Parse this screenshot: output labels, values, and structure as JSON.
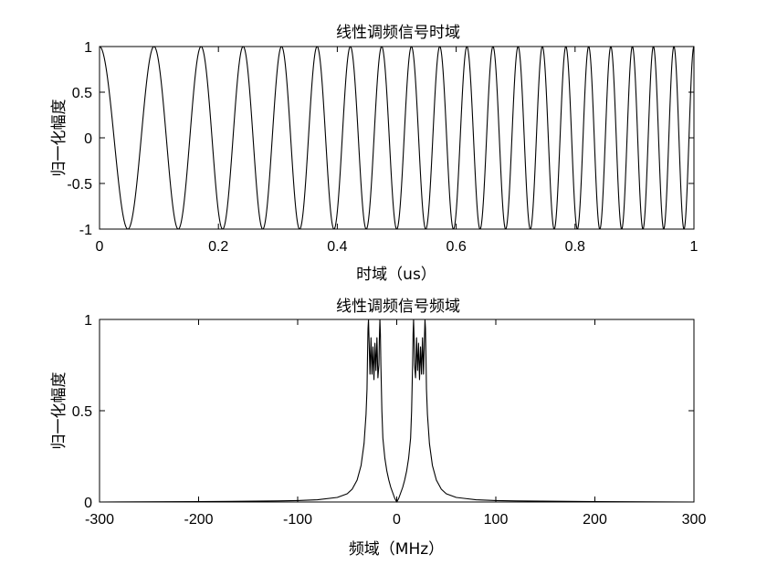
{
  "chart_data": [
    {
      "type": "line",
      "title": "线性调频信号时域",
      "xlabel": "时域（us）",
      "ylabel": "归一化幅度",
      "xlim": [
        0,
        1
      ],
      "ylim": [
        -1,
        1
      ],
      "x_ticks": [
        "0",
        "0.2",
        "0.4",
        "0.6",
        "0.8",
        "1"
      ],
      "y_ticks": [
        "1",
        "0.5",
        "0",
        "-0.5",
        "-1"
      ],
      "grid": false,
      "series": [
        {
          "signal": "cos(2*pi*(f0*t + 0.5*k*t^2))",
          "f0_MHz": 10,
          "chirp_rate_MHz_per_us": 20,
          "t_range_us": [
            0,
            1
          ],
          "color": "#000000"
        }
      ]
    },
    {
      "type": "line",
      "title": "线性调频信号频域",
      "xlabel": "频域（MHz）",
      "ylabel": "归一化幅度",
      "xlim": [
        -300,
        300
      ],
      "ylim": [
        0,
        1
      ],
      "x_ticks": [
        "-300",
        "-200",
        "-100",
        "0",
        "100",
        "200",
        "300"
      ],
      "y_ticks": [
        "1",
        "0.5",
        "0"
      ],
      "grid": false,
      "series": [
        {
          "points": [
            [
              -300,
              0.0
            ],
            [
              -200,
              0.002
            ],
            [
              -120,
              0.006
            ],
            [
              -100,
              0.008
            ],
            [
              -80,
              0.012
            ],
            [
              -60,
              0.025
            ],
            [
              -50,
              0.045
            ],
            [
              -45,
              0.07
            ],
            [
              -40,
              0.12
            ],
            [
              -36,
              0.2
            ],
            [
              -33,
              0.32
            ],
            [
              -31,
              0.48
            ],
            [
              -30,
              0.62
            ],
            [
              -29.5,
              0.8
            ],
            [
              -29,
              0.95
            ],
            [
              -28.5,
              1.0
            ],
            [
              -28,
              0.9
            ],
            [
              -27,
              0.7
            ],
            [
              -26,
              0.9
            ],
            [
              -25,
              0.7
            ],
            [
              -24,
              0.85
            ],
            [
              -23,
              0.67
            ],
            [
              -22,
              0.87
            ],
            [
              -21,
              0.72
            ],
            [
              -20,
              0.9
            ],
            [
              -19,
              0.68
            ],
            [
              -18,
              0.75
            ],
            [
              -17.5,
              0.9
            ],
            [
              -17,
              1.0
            ],
            [
              -16.5,
              0.92
            ],
            [
              -16,
              0.75
            ],
            [
              -15,
              0.5
            ],
            [
              -14,
              0.35
            ],
            [
              -12,
              0.24
            ],
            [
              -10,
              0.17
            ],
            [
              -8,
              0.12
            ],
            [
              -6,
              0.08
            ],
            [
              -4,
              0.05
            ],
            [
              -2,
              0.02
            ],
            [
              0,
              0.0
            ],
            [
              2,
              0.02
            ],
            [
              4,
              0.05
            ],
            [
              6,
              0.08
            ],
            [
              8,
              0.12
            ],
            [
              10,
              0.17
            ],
            [
              12,
              0.24
            ],
            [
              14,
              0.35
            ],
            [
              15,
              0.5
            ],
            [
              16,
              0.75
            ],
            [
              16.5,
              0.92
            ],
            [
              17,
              1.0
            ],
            [
              17.5,
              0.9
            ],
            [
              18,
              0.75
            ],
            [
              19,
              0.68
            ],
            [
              20,
              0.9
            ],
            [
              21,
              0.72
            ],
            [
              22,
              0.87
            ],
            [
              23,
              0.67
            ],
            [
              24,
              0.85
            ],
            [
              25,
              0.7
            ],
            [
              26,
              0.9
            ],
            [
              27,
              0.7
            ],
            [
              28,
              0.9
            ],
            [
              28.5,
              1.0
            ],
            [
              29,
              0.95
            ],
            [
              29.5,
              0.8
            ],
            [
              30,
              0.62
            ],
            [
              31,
              0.48
            ],
            [
              33,
              0.32
            ],
            [
              36,
              0.2
            ],
            [
              40,
              0.12
            ],
            [
              45,
              0.07
            ],
            [
              50,
              0.045
            ],
            [
              60,
              0.025
            ],
            [
              80,
              0.012
            ],
            [
              100,
              0.008
            ],
            [
              120,
              0.006
            ],
            [
              200,
              0.002
            ],
            [
              300,
              0.0
            ]
          ],
          "color": "#000000"
        }
      ]
    }
  ]
}
